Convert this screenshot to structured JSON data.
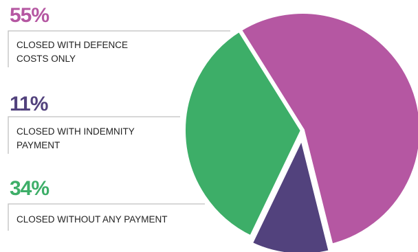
{
  "chart_data": {
    "type": "pie",
    "title": "",
    "slices": [
      {
        "percent_label": "55%",
        "description": "CLOSED WITH DEFENCE\nCOSTS  ONLY",
        "value": 55,
        "color": "#B557A2"
      },
      {
        "percent_label": "11%",
        "description": "CLOSED WITH INDEMNITY\nPAYMENT",
        "value": 11,
        "color": "#52427D"
      },
      {
        "percent_label": "34%",
        "description": "CLOSED WITHOUT ANY PAYMENT",
        "value": 34,
        "color": "#3DAE68"
      }
    ],
    "legend": "left",
    "label_line_color": "#BFBFBF"
  }
}
